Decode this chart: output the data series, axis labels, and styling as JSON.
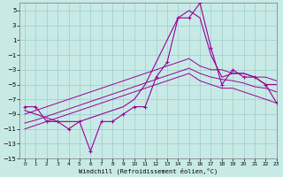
{
  "xlabel": "Windchill (Refroidissement éolien,°C)",
  "background_color": "#c8eae6",
  "grid_color": "#99cccc",
  "line_color": "#990099",
  "x_hours": [
    0,
    1,
    2,
    3,
    4,
    5,
    6,
    7,
    8,
    9,
    10,
    11,
    12,
    13,
    14,
    15,
    16,
    17,
    18,
    19,
    20,
    21,
    22,
    23
  ],
  "main_data": [
    -8,
    -8,
    -10,
    -10,
    -11,
    -10,
    -14,
    -10,
    -10,
    -9,
    -8,
    -8,
    -4,
    -2,
    4,
    4,
    6,
    0,
    -5,
    -3,
    -4,
    -4,
    -5,
    -7.5
  ],
  "smooth_line": [
    -8.5,
    -9,
    -9.5,
    -10,
    -10,
    -10,
    -9.5,
    -9,
    -8.5,
    -8,
    -7,
    -5,
    -2,
    1,
    4,
    5,
    4,
    -1,
    -4,
    -3.5,
    -3.5,
    -4,
    -5,
    -5
  ],
  "regr_upper": [
    -9,
    -8.5,
    -8,
    -7.5,
    -7,
    -6.5,
    -6,
    -5.5,
    -5,
    -4.5,
    -4,
    -3.5,
    -3,
    -2.5,
    -2,
    -1.5,
    -2.5,
    -3,
    -3,
    -3.5,
    -3.5,
    -4,
    -4,
    -4.5
  ],
  "regr_lower": [
    -11,
    -10.5,
    -10,
    -9.5,
    -9,
    -8.5,
    -8,
    -7.5,
    -7,
    -6.5,
    -6,
    -5.5,
    -5,
    -4.5,
    -4,
    -3.5,
    -4.5,
    -5,
    -5.5,
    -5.5,
    -6,
    -6.5,
    -7,
    -7.5
  ],
  "regr_mid": [
    -10.2,
    -9.8,
    -9.3,
    -8.8,
    -8.3,
    -7.8,
    -7.3,
    -6.8,
    -6.3,
    -5.8,
    -5.3,
    -4.8,
    -4.3,
    -3.8,
    -3.3,
    -2.8,
    -3.5,
    -4,
    -4.3,
    -4.5,
    -4.8,
    -5.3,
    -5.5,
    -6
  ],
  "ylim": [
    -15,
    6
  ],
  "xlim": [
    -0.5,
    23
  ],
  "yticks": [
    5,
    3,
    1,
    -1,
    -3,
    -5,
    -7,
    -9,
    -11,
    -13,
    -15
  ],
  "xticks": [
    0,
    1,
    2,
    3,
    4,
    5,
    6,
    7,
    8,
    9,
    10,
    11,
    12,
    13,
    14,
    15,
    16,
    17,
    18,
    19,
    20,
    21,
    22,
    23
  ]
}
